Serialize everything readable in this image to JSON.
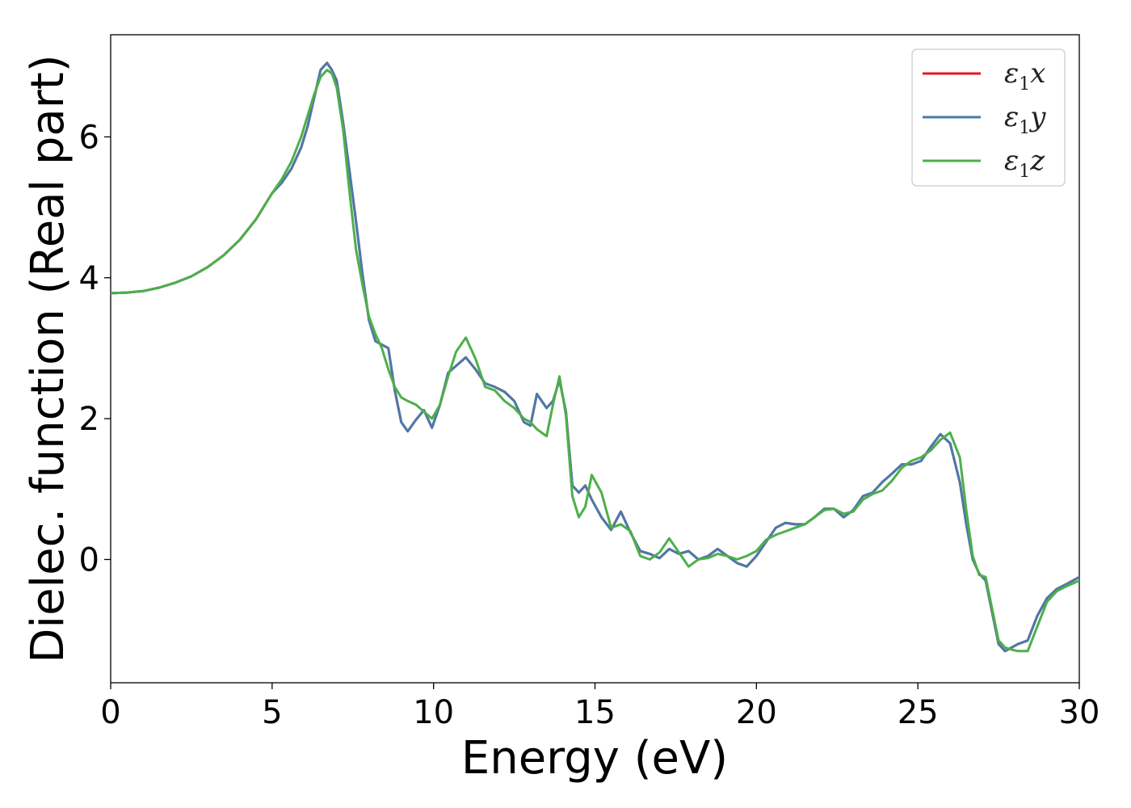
{
  "chart_data": {
    "type": "line",
    "title": "",
    "xlabel": "Energy (eV)",
    "ylabel": "Dielec. function (Real part)",
    "xlim": [
      0,
      30
    ],
    "ylim": [
      -1.75,
      7.45
    ],
    "xticks": [
      0,
      5,
      10,
      15,
      20,
      25,
      30
    ],
    "yticks": [
      0,
      2,
      4,
      6
    ],
    "grid": false,
    "legend_position": "top-right",
    "series": [
      {
        "name": "x",
        "color": "#e41a1c",
        "x": [
          0,
          0.5,
          1,
          1.5,
          2,
          2.5,
          3,
          3.5,
          4,
          4.5,
          5,
          5.3,
          5.6,
          5.9,
          6.1,
          6.3,
          6.5,
          6.7,
          6.85,
          7,
          7.2,
          7.4,
          7.6,
          7.8,
          8,
          8.2,
          8.4,
          8.6,
          8.8,
          9,
          9.2,
          9.45,
          9.7,
          9.95,
          10.2,
          10.45,
          10.7,
          11,
          11.3,
          11.6,
          11.9,
          12.2,
          12.5,
          12.8,
          13,
          13.2,
          13.5,
          13.7,
          13.9,
          14.1,
          14.3,
          14.5,
          14.7,
          14.9,
          15.2,
          15.5,
          15.8,
          16.1,
          16.4,
          16.7,
          17,
          17.3,
          17.6,
          17.9,
          18.2,
          18.5,
          18.8,
          19.1,
          19.4,
          19.7,
          20,
          20.3,
          20.6,
          20.9,
          21.2,
          21.5,
          21.8,
          22.1,
          22.4,
          22.7,
          23,
          23.3,
          23.6,
          23.9,
          24.2,
          24.5,
          24.8,
          25.1,
          25.4,
          25.7,
          26,
          26.3,
          26.5,
          26.7,
          26.9,
          27.1,
          27.3,
          27.5,
          27.7,
          27.9,
          28.1,
          28.4,
          28.7,
          29,
          29.3,
          29.6,
          30
        ],
        "y": [
          3.78,
          3.79,
          3.81,
          3.86,
          3.93,
          4.02,
          4.15,
          4.32,
          4.54,
          4.83,
          5.2,
          5.35,
          5.55,
          5.85,
          6.15,
          6.55,
          6.95,
          7.05,
          6.95,
          6.8,
          6.2,
          5.5,
          4.8,
          4.05,
          3.4,
          3.1,
          3.05,
          3.0,
          2.4,
          1.95,
          1.82,
          1.98,
          2.12,
          1.87,
          2.2,
          2.65,
          2.75,
          2.87,
          2.7,
          2.5,
          2.45,
          2.38,
          2.25,
          1.95,
          1.9,
          2.35,
          2.15,
          2.25,
          2.55,
          2.1,
          1.05,
          0.95,
          1.05,
          0.85,
          0.6,
          0.42,
          0.68,
          0.38,
          0.12,
          0.08,
          0.02,
          0.15,
          0.08,
          0.12,
          0.0,
          0.05,
          0.15,
          0.05,
          -0.05,
          -0.1,
          0.05,
          0.25,
          0.45,
          0.52,
          0.5,
          0.5,
          0.6,
          0.72,
          0.72,
          0.6,
          0.7,
          0.9,
          0.95,
          1.1,
          1.22,
          1.35,
          1.35,
          1.4,
          1.6,
          1.78,
          1.65,
          1.1,
          0.5,
          0.0,
          -0.2,
          -0.3,
          -0.75,
          -1.2,
          -1.3,
          -1.25,
          -1.2,
          -1.15,
          -0.8,
          -0.55,
          -0.42,
          -0.35,
          -0.25
        ]
      },
      {
        "name": "y",
        "color": "#4a7aab",
        "x": [
          0,
          0.5,
          1,
          1.5,
          2,
          2.5,
          3,
          3.5,
          4,
          4.5,
          5,
          5.3,
          5.6,
          5.9,
          6.1,
          6.3,
          6.5,
          6.7,
          6.85,
          7,
          7.2,
          7.4,
          7.6,
          7.8,
          8,
          8.2,
          8.4,
          8.6,
          8.8,
          9,
          9.2,
          9.45,
          9.7,
          9.95,
          10.2,
          10.45,
          10.7,
          11,
          11.3,
          11.6,
          11.9,
          12.2,
          12.5,
          12.8,
          13,
          13.2,
          13.5,
          13.7,
          13.9,
          14.1,
          14.3,
          14.5,
          14.7,
          14.9,
          15.2,
          15.5,
          15.8,
          16.1,
          16.4,
          16.7,
          17,
          17.3,
          17.6,
          17.9,
          18.2,
          18.5,
          18.8,
          19.1,
          19.4,
          19.7,
          20,
          20.3,
          20.6,
          20.9,
          21.2,
          21.5,
          21.8,
          22.1,
          22.4,
          22.7,
          23,
          23.3,
          23.6,
          23.9,
          24.2,
          24.5,
          24.8,
          25.1,
          25.4,
          25.7,
          26,
          26.3,
          26.5,
          26.7,
          26.9,
          27.1,
          27.3,
          27.5,
          27.7,
          27.9,
          28.1,
          28.4,
          28.7,
          29,
          29.3,
          29.6,
          30
        ],
        "y": [
          3.78,
          3.79,
          3.81,
          3.86,
          3.93,
          4.02,
          4.15,
          4.32,
          4.54,
          4.83,
          5.2,
          5.35,
          5.55,
          5.85,
          6.15,
          6.55,
          6.95,
          7.05,
          6.95,
          6.8,
          6.2,
          5.5,
          4.8,
          4.05,
          3.4,
          3.1,
          3.05,
          3.0,
          2.4,
          1.95,
          1.82,
          1.98,
          2.12,
          1.87,
          2.2,
          2.65,
          2.75,
          2.87,
          2.7,
          2.5,
          2.45,
          2.38,
          2.25,
          1.95,
          1.9,
          2.35,
          2.15,
          2.25,
          2.55,
          2.1,
          1.05,
          0.95,
          1.05,
          0.85,
          0.6,
          0.42,
          0.68,
          0.38,
          0.12,
          0.08,
          0.02,
          0.15,
          0.08,
          0.12,
          0.0,
          0.05,
          0.15,
          0.05,
          -0.05,
          -0.1,
          0.05,
          0.25,
          0.45,
          0.52,
          0.5,
          0.5,
          0.6,
          0.72,
          0.72,
          0.6,
          0.7,
          0.9,
          0.95,
          1.1,
          1.22,
          1.35,
          1.35,
          1.4,
          1.6,
          1.78,
          1.65,
          1.1,
          0.5,
          0.0,
          -0.2,
          -0.3,
          -0.75,
          -1.2,
          -1.3,
          -1.25,
          -1.2,
          -1.15,
          -0.8,
          -0.55,
          -0.42,
          -0.35,
          -0.25
        ]
      },
      {
        "name": "z",
        "color": "#4daf4a",
        "x": [
          0,
          0.5,
          1,
          1.5,
          2,
          2.5,
          3,
          3.5,
          4,
          4.5,
          5,
          5.3,
          5.6,
          5.9,
          6.1,
          6.3,
          6.5,
          6.7,
          6.85,
          7,
          7.2,
          7.4,
          7.6,
          7.8,
          8,
          8.2,
          8.4,
          8.6,
          8.8,
          9,
          9.2,
          9.45,
          9.7,
          9.95,
          10.2,
          10.45,
          10.7,
          11,
          11.3,
          11.6,
          11.9,
          12.2,
          12.5,
          12.8,
          13,
          13.2,
          13.5,
          13.7,
          13.9,
          14.1,
          14.3,
          14.5,
          14.7,
          14.9,
          15.2,
          15.5,
          15.8,
          16.1,
          16.4,
          16.7,
          17,
          17.3,
          17.6,
          17.9,
          18.2,
          18.5,
          18.8,
          19.1,
          19.4,
          19.7,
          20,
          20.3,
          20.6,
          20.9,
          21.2,
          21.5,
          21.8,
          22.1,
          22.4,
          22.7,
          23,
          23.3,
          23.6,
          23.9,
          24.2,
          24.5,
          24.8,
          25.1,
          25.4,
          25.7,
          26,
          26.3,
          26.5,
          26.7,
          26.9,
          27.1,
          27.3,
          27.5,
          27.7,
          27.9,
          28.1,
          28.4,
          28.7,
          29,
          29.3,
          29.6,
          30
        ],
        "y": [
          3.78,
          3.79,
          3.81,
          3.86,
          3.93,
          4.02,
          4.15,
          4.32,
          4.54,
          4.83,
          5.2,
          5.4,
          5.65,
          6.0,
          6.3,
          6.6,
          6.85,
          6.95,
          6.9,
          6.7,
          6.1,
          5.2,
          4.4,
          3.9,
          3.45,
          3.2,
          3.0,
          2.7,
          2.45,
          2.3,
          2.25,
          2.2,
          2.1,
          2.0,
          2.2,
          2.6,
          2.95,
          3.15,
          2.85,
          2.45,
          2.4,
          2.25,
          2.15,
          2.0,
          1.95,
          1.85,
          1.75,
          2.2,
          2.6,
          2.05,
          0.9,
          0.6,
          0.75,
          1.2,
          0.95,
          0.45,
          0.5,
          0.4,
          0.05,
          0.0,
          0.1,
          0.3,
          0.1,
          -0.1,
          0.0,
          0.02,
          0.08,
          0.05,
          0.0,
          0.05,
          0.12,
          0.28,
          0.35,
          0.4,
          0.45,
          0.5,
          0.6,
          0.7,
          0.72,
          0.65,
          0.68,
          0.85,
          0.93,
          0.98,
          1.12,
          1.3,
          1.4,
          1.45,
          1.55,
          1.7,
          1.8,
          1.45,
          0.7,
          0.05,
          -0.22,
          -0.25,
          -0.7,
          -1.15,
          -1.25,
          -1.28,
          -1.3,
          -1.3,
          -0.95,
          -0.6,
          -0.45,
          -0.38,
          -0.3
        ]
      }
    ]
  }
}
